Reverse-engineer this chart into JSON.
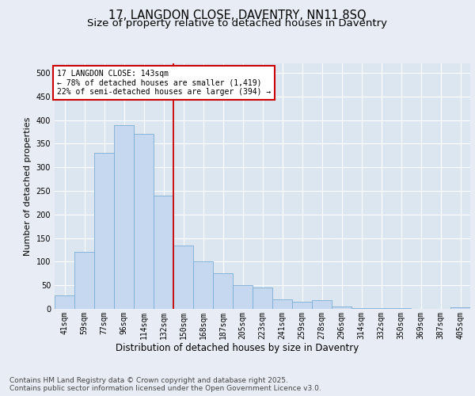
{
  "title": "17, LANGDON CLOSE, DAVENTRY, NN11 8SQ",
  "subtitle": "Size of property relative to detached houses in Daventry",
  "xlabel": "Distribution of detached houses by size in Daventry",
  "ylabel": "Number of detached properties",
  "bar_values": [
    28,
    120,
    330,
    390,
    370,
    240,
    135,
    100,
    75,
    50,
    45,
    20,
    15,
    18,
    5,
    2,
    2,
    1,
    0,
    0,
    4
  ],
  "bin_labels": [
    "41sqm",
    "59sqm",
    "77sqm",
    "96sqm",
    "114sqm",
    "132sqm",
    "150sqm",
    "168sqm",
    "187sqm",
    "205sqm",
    "223sqm",
    "241sqm",
    "259sqm",
    "278sqm",
    "296sqm",
    "314sqm",
    "332sqm",
    "350sqm",
    "369sqm",
    "387sqm",
    "405sqm"
  ],
  "bar_color": "#c5d8ef",
  "bar_edge_color": "#7aadd4",
  "vline_color": "#cc0000",
  "vline_x_index": 6,
  "annotation_box_text": "17 LANGDON CLOSE: 143sqm\n← 78% of detached houses are smaller (1,419)\n22% of semi-detached houses are larger (394) →",
  "annotation_box_edge": "#cc0000",
  "ylim": [
    0,
    520
  ],
  "yticks": [
    0,
    50,
    100,
    150,
    200,
    250,
    300,
    350,
    400,
    450,
    500
  ],
  "background_color": "#e8edf5",
  "plot_bg_color": "#dce6f1",
  "grid_color": "#ffffff",
  "footer_text": "Contains HM Land Registry data © Crown copyright and database right 2025.\nContains public sector information licensed under the Open Government Licence v3.0.",
  "title_fontsize": 10.5,
  "subtitle_fontsize": 9.5,
  "ylabel_fontsize": 8,
  "xlabel_fontsize": 8.5,
  "tick_fontsize": 7,
  "ann_fontsize": 7,
  "footer_fontsize": 6.5
}
